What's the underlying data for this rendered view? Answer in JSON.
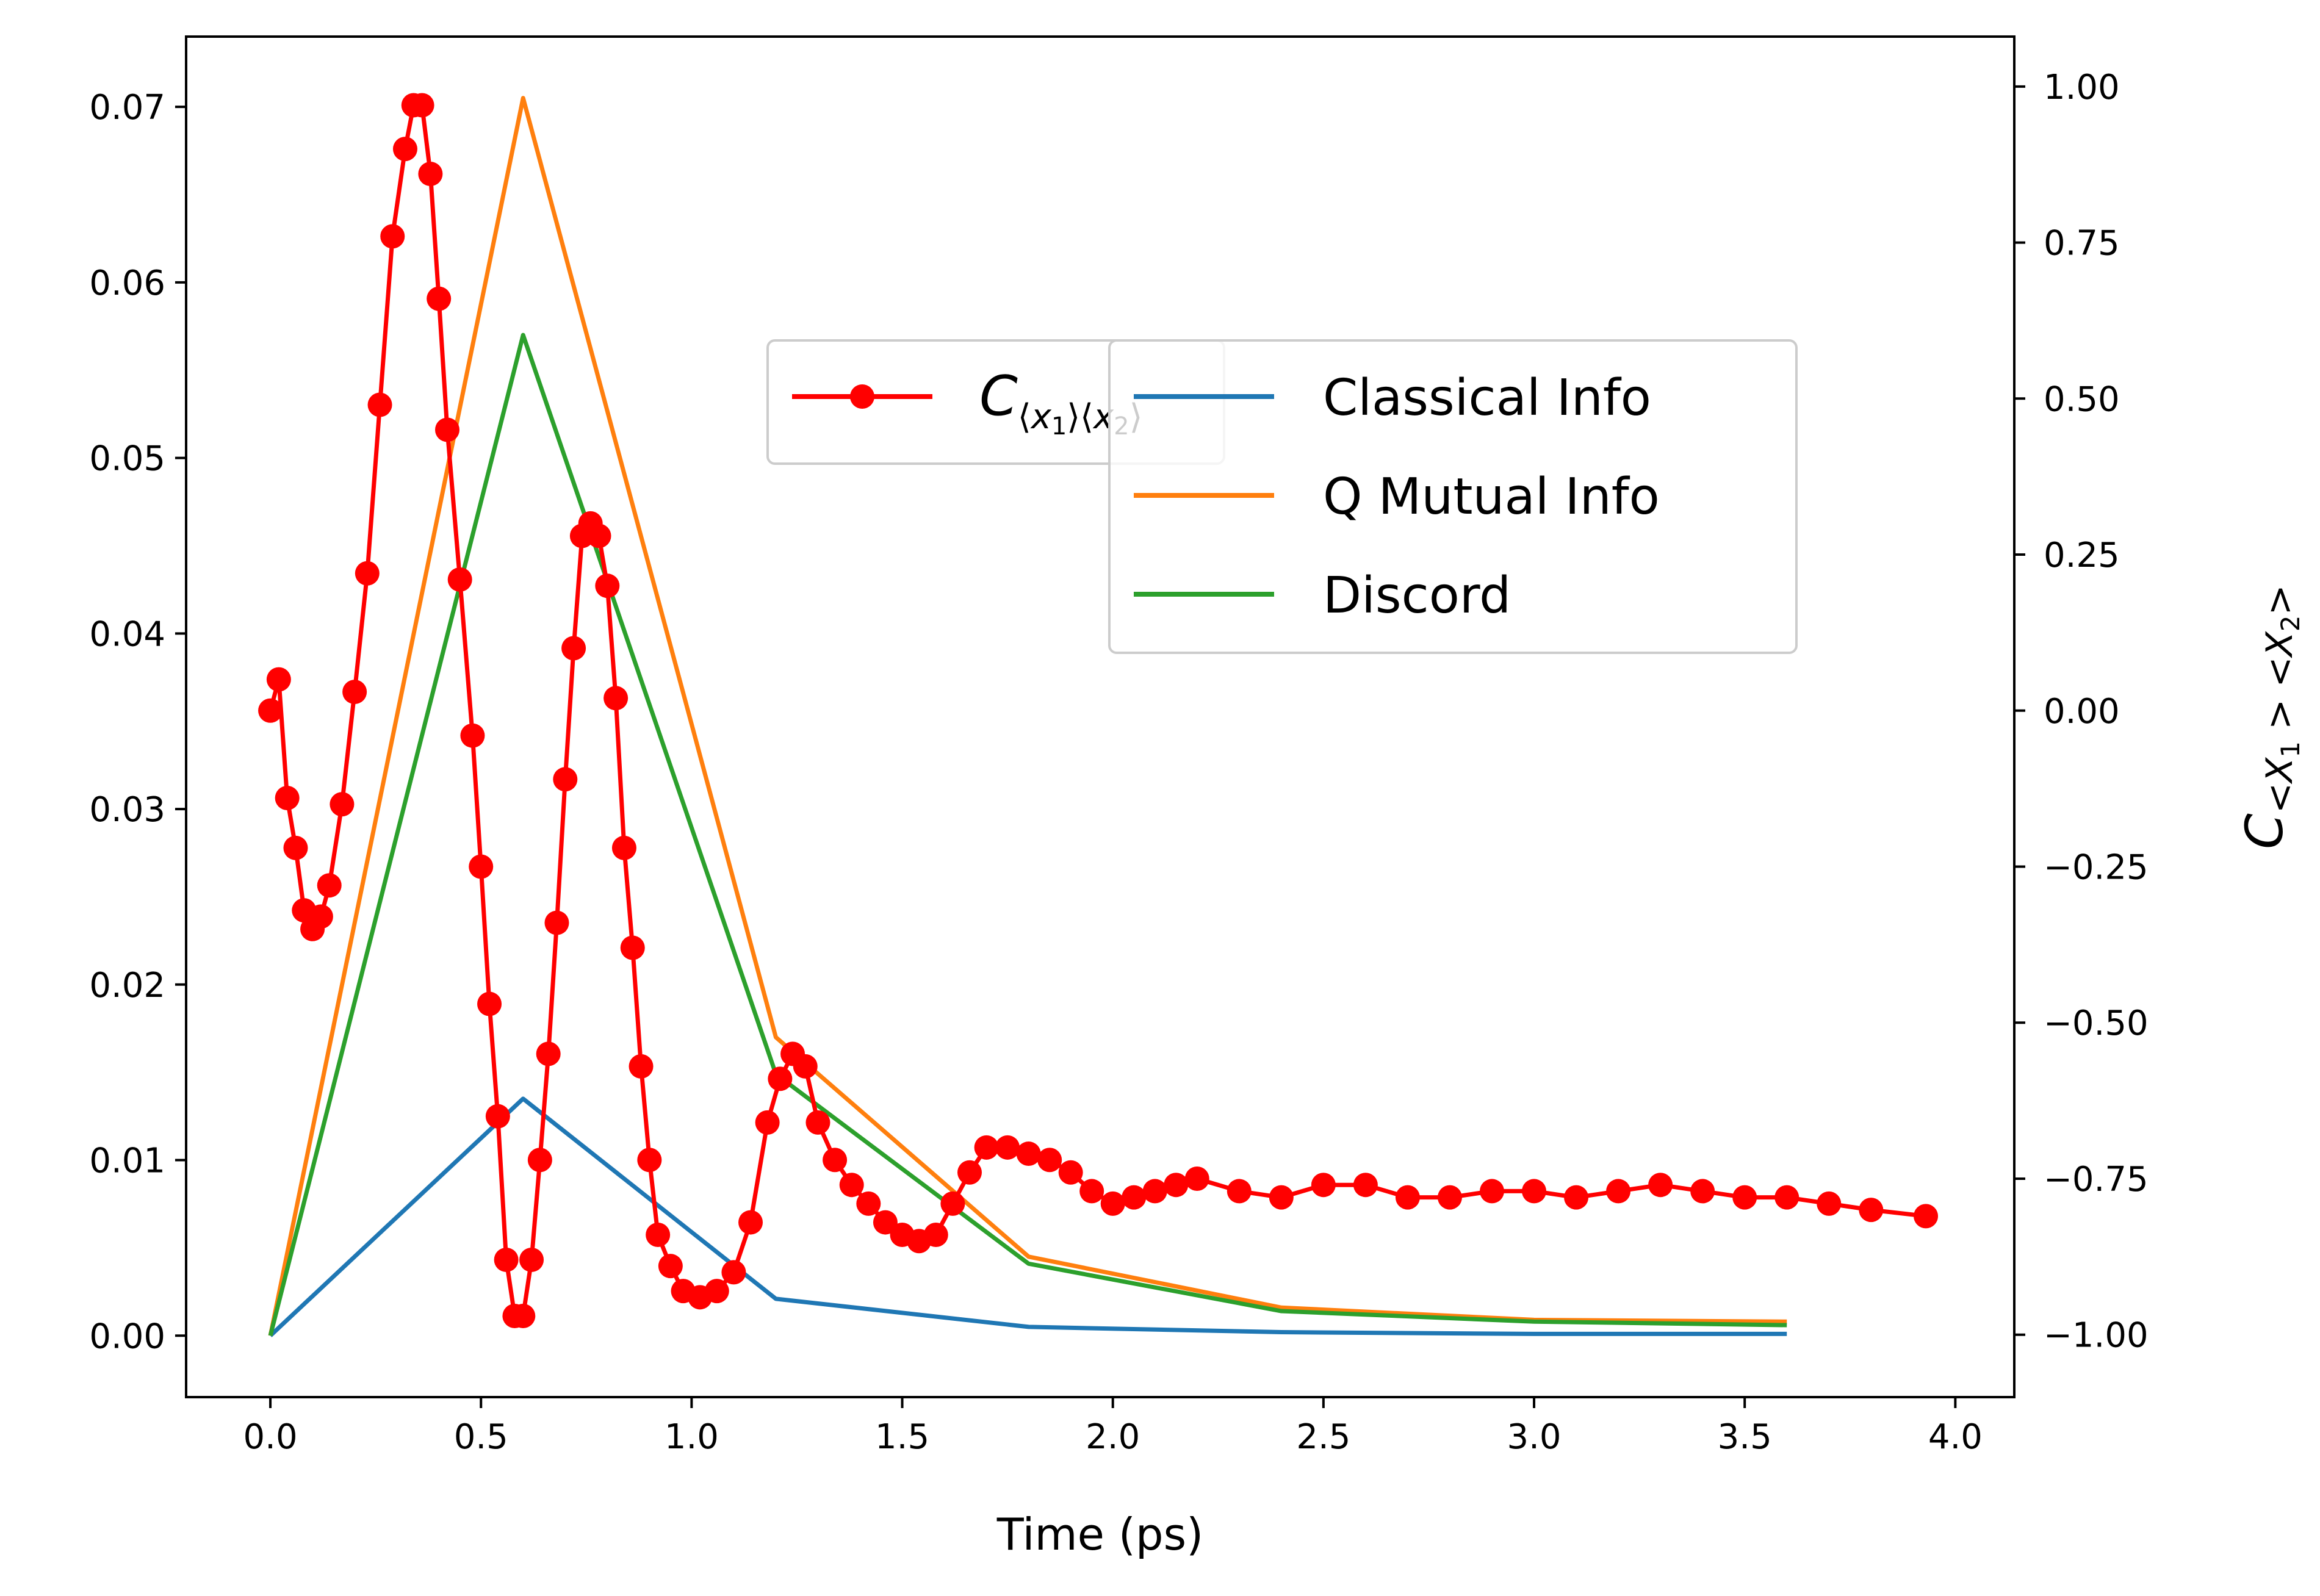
{
  "chart_data": {
    "type": "line",
    "xlabel": "Time (ps)",
    "ylabel_right": "C_{<X_1> <X_2>}",
    "xlim": [
      -0.2,
      4.14
    ],
    "ylim_left": [
      -0.0035,
      0.074
    ],
    "ylim_right": [
      -1.1,
      1.08
    ],
    "x_ticks": [
      0.0,
      0.5,
      1.0,
      1.5,
      2.0,
      2.5,
      3.0,
      3.5,
      4.0
    ],
    "x_tick_labels": [
      "0.0",
      "0.5",
      "1.0",
      "1.5",
      "2.0",
      "2.5",
      "3.0",
      "3.5",
      "4.0"
    ],
    "y_left_ticks": [
      0.0,
      0.01,
      0.02,
      0.03,
      0.04,
      0.05,
      0.06,
      0.07
    ],
    "y_left_tick_labels": [
      "0.00",
      "0.01",
      "0.02",
      "0.03",
      "0.04",
      "0.05",
      "0.06",
      "0.07"
    ],
    "y_right_ticks": [
      -1.0,
      -0.75,
      -0.5,
      -0.25,
      0.0,
      0.25,
      0.5,
      0.75,
      1.0
    ],
    "y_right_tick_labels": [
      "−1.00",
      "−0.75",
      "−0.50",
      "−0.25",
      "0.00",
      "0.25",
      "0.50",
      "0.75",
      "1.00"
    ],
    "grid": false,
    "series_left": [
      {
        "name": "Classical Info",
        "color": "#1f77b4",
        "x": [
          0.0,
          0.6,
          1.2,
          1.8,
          2.4,
          3.0,
          3.6
        ],
        "y": [
          0.0,
          0.0135,
          0.0021,
          0.0005,
          0.0002,
          0.0001,
          0.0001
        ]
      },
      {
        "name": "Q Mutual Info",
        "color": "#ff7f0e",
        "x": [
          0.0,
          0.6,
          1.2,
          1.8,
          2.4,
          3.0,
          3.6
        ],
        "y": [
          0.0,
          0.0705,
          0.017,
          0.0045,
          0.0016,
          0.0009,
          0.0008
        ]
      },
      {
        "name": "Discord",
        "color": "#2ca02c",
        "x": [
          0.0,
          0.6,
          1.2,
          1.8,
          2.4,
          3.0,
          3.6
        ],
        "y": [
          0.0,
          0.057,
          0.0149,
          0.0041,
          0.0014,
          0.0008,
          0.0006
        ]
      }
    ],
    "series_right": [
      {
        "name": "C_{⟨x_1⟩⟨x_2⟩}",
        "color": "#ff0000",
        "x": [
          0.0,
          0.02,
          0.04,
          0.06,
          0.08,
          0.1,
          0.12,
          0.14,
          0.17,
          0.2,
          0.23,
          0.26,
          0.29,
          0.32,
          0.34,
          0.36,
          0.38,
          0.4,
          0.42,
          0.45,
          0.48,
          0.5,
          0.52,
          0.54,
          0.56,
          0.58,
          0.6,
          0.62,
          0.64,
          0.66,
          0.68,
          0.7,
          0.72,
          0.74,
          0.76,
          0.78,
          0.8,
          0.82,
          0.84,
          0.86,
          0.88,
          0.9,
          0.92,
          0.95,
          0.98,
          1.02,
          1.06,
          1.1,
          1.14,
          1.18,
          1.21,
          1.24,
          1.27,
          1.3,
          1.34,
          1.38,
          1.42,
          1.46,
          1.5,
          1.54,
          1.58,
          1.62,
          1.66,
          1.7,
          1.75,
          1.8,
          1.85,
          1.9,
          1.95,
          2.0,
          2.05,
          2.1,
          2.15,
          2.2,
          2.3,
          2.4,
          2.5,
          2.6,
          2.7,
          2.8,
          2.9,
          3.0,
          3.1,
          3.2,
          3.3,
          3.4,
          3.5,
          3.6,
          3.7,
          3.8,
          3.93
        ],
        "y": [
          0.0,
          0.05,
          -0.14,
          -0.22,
          -0.32,
          -0.35,
          -0.33,
          -0.28,
          -0.15,
          0.03,
          0.22,
          0.49,
          0.76,
          0.9,
          0.97,
          0.97,
          0.86,
          0.66,
          0.45,
          0.21,
          -0.04,
          -0.25,
          -0.47,
          -0.65,
          -0.88,
          -0.97,
          -0.97,
          -0.88,
          -0.72,
          -0.55,
          -0.34,
          -0.11,
          0.1,
          0.28,
          0.3,
          0.28,
          0.2,
          0.02,
          -0.22,
          -0.38,
          -0.57,
          -0.72,
          -0.84,
          -0.89,
          -0.93,
          -0.94,
          -0.93,
          -0.9,
          -0.82,
          -0.66,
          -0.59,
          -0.55,
          -0.57,
          -0.66,
          -0.72,
          -0.76,
          -0.79,
          -0.82,
          -0.84,
          -0.85,
          -0.84,
          -0.79,
          -0.74,
          -0.7,
          -0.7,
          -0.71,
          -0.72,
          -0.74,
          -0.77,
          -0.79,
          -0.78,
          -0.77,
          -0.76,
          -0.75,
          -0.77,
          -0.78,
          -0.76,
          -0.76,
          -0.78,
          -0.78,
          -0.77,
          -0.77,
          -0.78,
          -0.77,
          -0.76,
          -0.77,
          -0.78,
          -0.78,
          -0.79,
          -0.8,
          -0.81
        ]
      }
    ],
    "legend_right": {
      "placement": "upper-center"
    },
    "legend_left": {
      "placement": "center-right"
    }
  }
}
